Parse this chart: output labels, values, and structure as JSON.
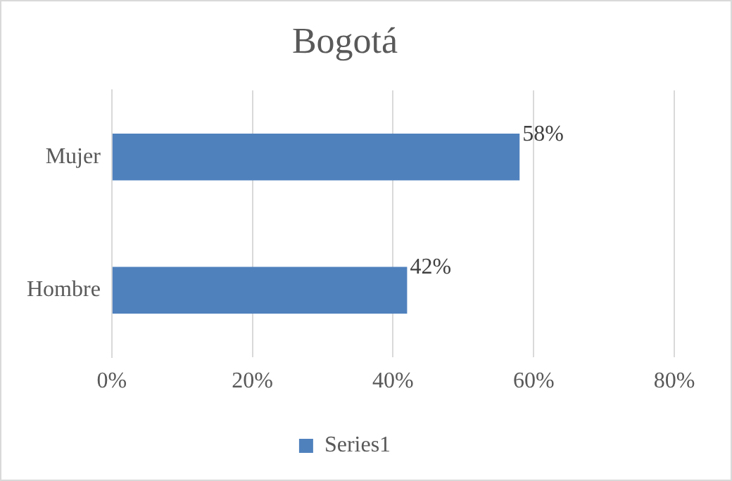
{
  "chart_data": {
    "type": "bar",
    "orientation": "horizontal",
    "title": "Bogotá",
    "categories": [
      "Mujer",
      "Hombre"
    ],
    "series": [
      {
        "name": "Series1",
        "color": "#4f81bd",
        "values": [
          58,
          42
        ],
        "value_labels": [
          "58%",
          "42%"
        ]
      }
    ],
    "xlim": [
      0,
      80
    ],
    "xticks": [
      {
        "value": 0,
        "label": "0%"
      },
      {
        "value": 20,
        "label": "20%"
      },
      {
        "value": 40,
        "label": "40%"
      },
      {
        "value": 60,
        "label": "60%"
      },
      {
        "value": 80,
        "label": "80%"
      }
    ],
    "grid": "x",
    "legend": "bottom"
  }
}
